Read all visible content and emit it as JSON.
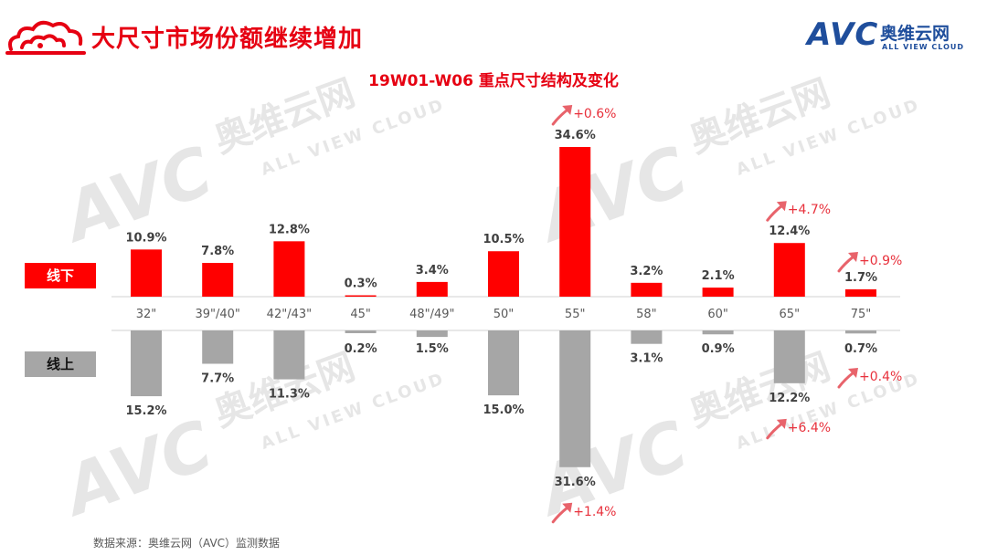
{
  "header": {
    "title": "大尺寸市场份额继续增加",
    "brand_avc": "AVC",
    "brand_cn": "奥维云网",
    "brand_en": "ALL VIEW CLOUD"
  },
  "watermark": {
    "avc": "AVC",
    "cn": "奥维云网",
    "en": "ALL VIEW CLOUD"
  },
  "footer": {
    "source": "数据来源：奥维云网（AVC）监测数据"
  },
  "chart_data": {
    "type": "bar",
    "title": "19W01-W06 重点尺寸结构及变化",
    "categories": [
      "32\"",
      "39\"/40\"",
      "42\"/43\"",
      "45\"",
      "48\"/49\"",
      "50\"",
      "55\"",
      "58\"",
      "60\"",
      "65\"",
      "75\""
    ],
    "series": [
      {
        "name": "线下",
        "color": "#ff0000",
        "values": [
          10.9,
          7.8,
          12.8,
          0.3,
          3.4,
          10.5,
          34.6,
          3.2,
          2.1,
          12.4,
          1.7
        ],
        "labels": [
          "10.9%",
          "7.8%",
          "12.8%",
          "0.3%",
          "3.4%",
          "10.5%",
          "34.6%",
          "3.2%",
          "2.1%",
          "12.4%",
          "1.7%"
        ]
      },
      {
        "name": "线上",
        "color": "#a6a6a6",
        "values": [
          15.2,
          7.7,
          11.3,
          0.2,
          1.5,
          15.0,
          31.6,
          3.1,
          0.9,
          12.2,
          0.7
        ],
        "labels": [
          "15.2%",
          "7.7%",
          "11.3%",
          "0.2%",
          "1.5%",
          "15.0%",
          "31.6%",
          "3.1%",
          "0.9%",
          "12.2%",
          "0.7%"
        ]
      }
    ],
    "annotations": [
      {
        "series": "线下",
        "category": "55\"",
        "text": "+0.6%"
      },
      {
        "series": "线下",
        "category": "65\"",
        "text": "+4.7%"
      },
      {
        "series": "线下",
        "category": "75\"",
        "text": "+0.9%"
      },
      {
        "series": "线上",
        "category": "55\"",
        "text": "+1.4%"
      },
      {
        "series": "线上",
        "category": "65\"",
        "text": "+6.4%"
      },
      {
        "series": "线上",
        "category": "75\"",
        "text": "+0.4%"
      }
    ],
    "grid": false,
    "legend": "left"
  }
}
